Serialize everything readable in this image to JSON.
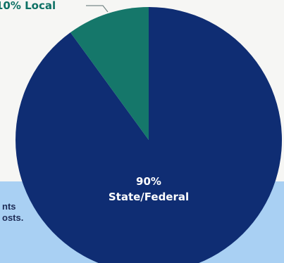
{
  "chart_data": {
    "type": "pie",
    "slices": [
      {
        "label": "State/Federal",
        "value": 90,
        "display": "90%",
        "color": "#0f2d73"
      },
      {
        "label": "Local",
        "value": 10,
        "display": "10% Local",
        "color": "#15776a"
      }
    ]
  },
  "band": {
    "line1": "nts",
    "line2": "osts."
  },
  "colors": {
    "background": "#f6f6f4",
    "band": "#a9d0f3",
    "leader_line": "#7a8a8a"
  }
}
